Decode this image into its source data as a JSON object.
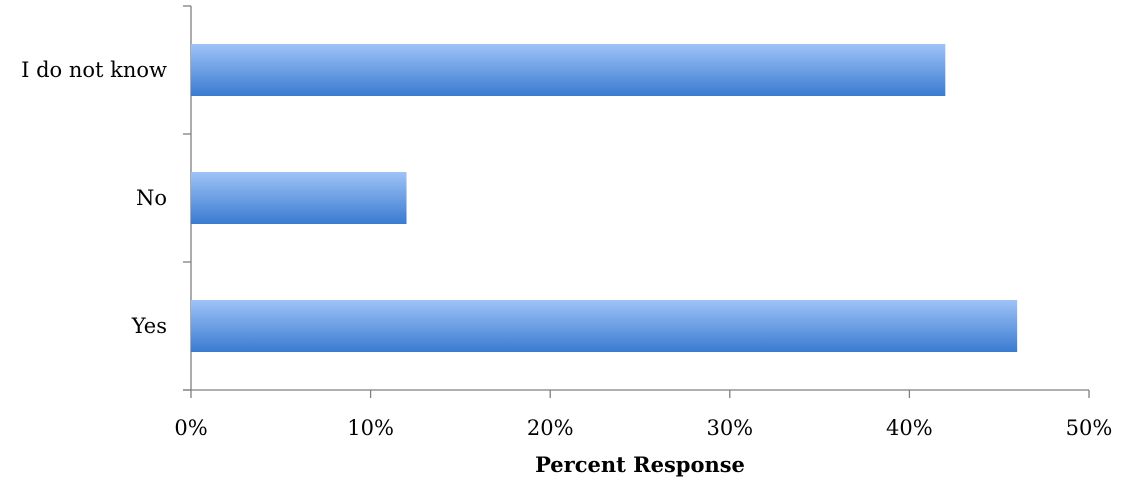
{
  "chart_data": {
    "type": "bar",
    "orientation": "horizontal",
    "categories": [
      "I do not know",
      "No",
      "Yes"
    ],
    "values": [
      42,
      12,
      46
    ],
    "xlabel": "Percent Response",
    "ylabel": "",
    "xlim": [
      0,
      50
    ],
    "xticks": [
      "0%",
      "10%",
      "20%",
      "30%",
      "40%",
      "50%"
    ],
    "grid": false,
    "bar_color_light": "#9fc3f7",
    "bar_color_dark": "#3a7bd0"
  }
}
